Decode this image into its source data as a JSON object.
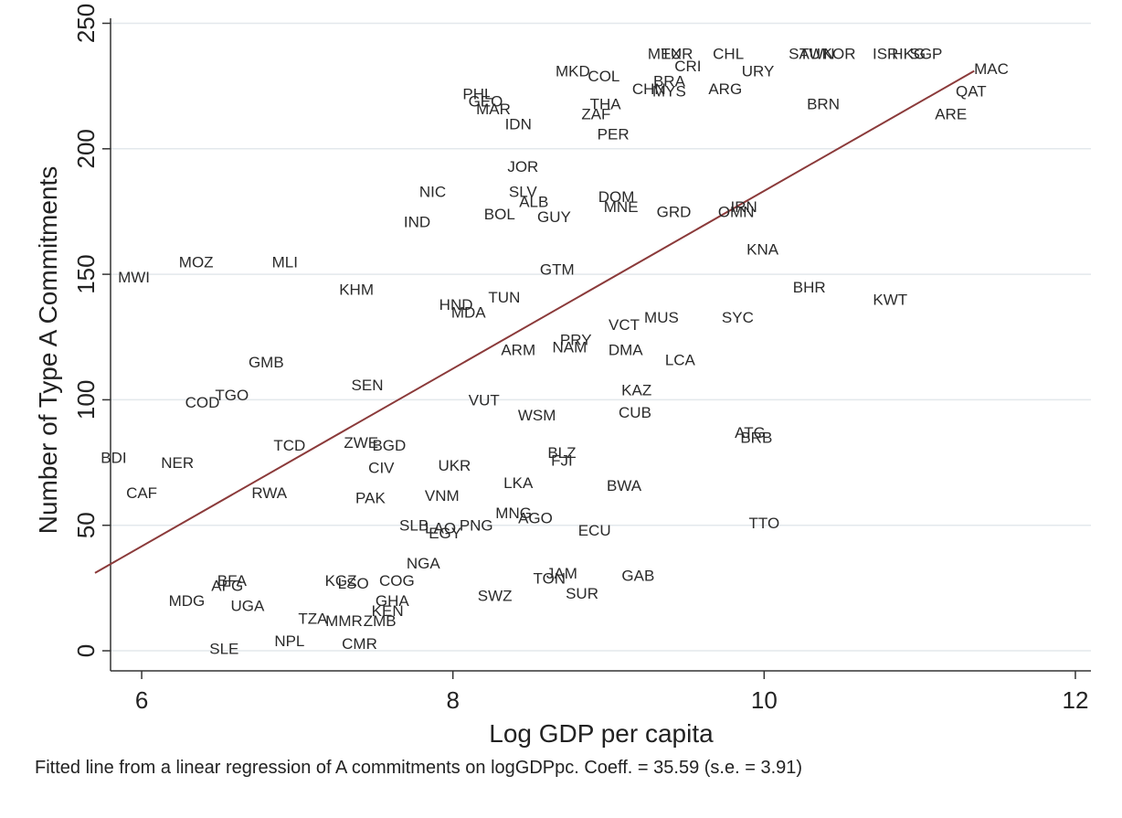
{
  "chart_data": {
    "type": "scatter",
    "xlabel": "Log GDP per capita",
    "ylabel": "Number of Type A Commitments",
    "xlim": [
      5.8,
      12.1
    ],
    "ylim": [
      -8,
      252
    ],
    "xticks": [
      6,
      8,
      10,
      12
    ],
    "yticks": [
      0,
      50,
      100,
      150,
      200,
      250
    ],
    "grid": true,
    "fit_line": {
      "x": [
        5.7,
        11.35
      ],
      "y": [
        31,
        231
      ],
      "color": "#8b3a3a"
    },
    "points": [
      {
        "label": "MWI",
        "x": 5.95,
        "y": 149
      },
      {
        "label": "MOZ",
        "x": 6.35,
        "y": 155
      },
      {
        "label": "MLI",
        "x": 6.92,
        "y": 155
      },
      {
        "label": "KHM",
        "x": 7.38,
        "y": 144
      },
      {
        "label": "NIC",
        "x": 7.87,
        "y": 183
      },
      {
        "label": "IND",
        "x": 7.77,
        "y": 171
      },
      {
        "label": "PHL",
        "x": 8.16,
        "y": 222
      },
      {
        "label": "GEO",
        "x": 8.21,
        "y": 219
      },
      {
        "label": "MAR",
        "x": 8.26,
        "y": 216
      },
      {
        "label": "IDN",
        "x": 8.42,
        "y": 210
      },
      {
        "label": "MKD",
        "x": 8.77,
        "y": 231
      },
      {
        "label": "COL",
        "x": 8.97,
        "y": 229
      },
      {
        "label": "THA",
        "x": 8.98,
        "y": 218
      },
      {
        "label": "ZAF",
        "x": 8.92,
        "y": 214
      },
      {
        "label": "PER",
        "x": 9.03,
        "y": 206
      },
      {
        "label": "JOR",
        "x": 8.45,
        "y": 193
      },
      {
        "label": "SLV",
        "x": 8.45,
        "y": 183
      },
      {
        "label": "ALB",
        "x": 8.52,
        "y": 179
      },
      {
        "label": "BOL",
        "x": 8.3,
        "y": 174
      },
      {
        "label": "GUY",
        "x": 8.65,
        "y": 173
      },
      {
        "label": "DOM",
        "x": 9.05,
        "y": 181
      },
      {
        "label": "MNE",
        "x": 9.08,
        "y": 177
      },
      {
        "label": "GRD",
        "x": 9.42,
        "y": 175
      },
      {
        "label": "MEX",
        "x": 9.36,
        "y": 238
      },
      {
        "label": "TUR",
        "x": 9.44,
        "y": 238
      },
      {
        "label": "CRI",
        "x": 9.51,
        "y": 233
      },
      {
        "label": "BRA",
        "x": 9.39,
        "y": 227
      },
      {
        "label": "CHN",
        "x": 9.26,
        "y": 224
      },
      {
        "label": "MYS",
        "x": 9.39,
        "y": 223
      },
      {
        "label": "CHL",
        "x": 9.77,
        "y": 238
      },
      {
        "label": "URY",
        "x": 9.96,
        "y": 231
      },
      {
        "label": "ARG",
        "x": 9.75,
        "y": 224
      },
      {
        "label": "SAU",
        "x": 10.26,
        "y": 238
      },
      {
        "label": "TWN",
        "x": 10.34,
        "y": 238
      },
      {
        "label": "KOR",
        "x": 10.48,
        "y": 238
      },
      {
        "label": "ISR",
        "x": 10.78,
        "y": 238
      },
      {
        "label": "HKG",
        "x": 10.93,
        "y": 238
      },
      {
        "label": "SGP",
        "x": 11.04,
        "y": 238
      },
      {
        "label": "MAC",
        "x": 11.46,
        "y": 232
      },
      {
        "label": "QAT",
        "x": 11.33,
        "y": 223
      },
      {
        "label": "ARE",
        "x": 11.2,
        "y": 214
      },
      {
        "label": "BRN",
        "x": 10.38,
        "y": 218
      },
      {
        "label": "IRN",
        "x": 9.87,
        "y": 177
      },
      {
        "label": "OMN",
        "x": 9.82,
        "y": 175
      },
      {
        "label": "KNA",
        "x": 9.99,
        "y": 160
      },
      {
        "label": "BHR",
        "x": 10.29,
        "y": 145
      },
      {
        "label": "KWT",
        "x": 10.81,
        "y": 140
      },
      {
        "label": "SYC",
        "x": 9.83,
        "y": 133
      },
      {
        "label": "GTM",
        "x": 8.67,
        "y": 152
      },
      {
        "label": "TUN",
        "x": 8.33,
        "y": 141
      },
      {
        "label": "HND",
        "x": 8.02,
        "y": 138
      },
      {
        "label": "MDA",
        "x": 8.1,
        "y": 135
      },
      {
        "label": "VCT",
        "x": 9.1,
        "y": 130
      },
      {
        "label": "MUS",
        "x": 9.34,
        "y": 133
      },
      {
        "label": "PRY",
        "x": 8.79,
        "y": 124
      },
      {
        "label": "NAM",
        "x": 8.75,
        "y": 121
      },
      {
        "label": "ARM",
        "x": 8.42,
        "y": 120
      },
      {
        "label": "DMA",
        "x": 9.11,
        "y": 120
      },
      {
        "label": "LCA",
        "x": 9.46,
        "y": 116
      },
      {
        "label": "GMB",
        "x": 6.8,
        "y": 115
      },
      {
        "label": "SEN",
        "x": 7.45,
        "y": 106
      },
      {
        "label": "TGO",
        "x": 6.58,
        "y": 102
      },
      {
        "label": "COD",
        "x": 6.39,
        "y": 99
      },
      {
        "label": "VUT",
        "x": 8.2,
        "y": 100
      },
      {
        "label": "WSM",
        "x": 8.54,
        "y": 94
      },
      {
        "label": "KAZ",
        "x": 9.18,
        "y": 104
      },
      {
        "label": "CUB",
        "x": 9.17,
        "y": 95
      },
      {
        "label": "ATG",
        "x": 9.91,
        "y": 87
      },
      {
        "label": "BRB",
        "x": 9.95,
        "y": 85
      },
      {
        "label": "BLZ",
        "x": 8.7,
        "y": 79
      },
      {
        "label": "FJI",
        "x": 8.7,
        "y": 76
      },
      {
        "label": "BDI",
        "x": 5.82,
        "y": 77
      },
      {
        "label": "NER",
        "x": 6.23,
        "y": 75
      },
      {
        "label": "TCD",
        "x": 6.95,
        "y": 82
      },
      {
        "label": "ZWE",
        "x": 7.41,
        "y": 83
      },
      {
        "label": "BGD",
        "x": 7.59,
        "y": 82
      },
      {
        "label": "CIV",
        "x": 7.54,
        "y": 73
      },
      {
        "label": "UKR",
        "x": 8.01,
        "y": 74
      },
      {
        "label": "LKA",
        "x": 8.42,
        "y": 67
      },
      {
        "label": "BWA",
        "x": 9.1,
        "y": 66
      },
      {
        "label": "CAF",
        "x": 6.0,
        "y": 63
      },
      {
        "label": "RWA",
        "x": 6.82,
        "y": 63
      },
      {
        "label": "PAK",
        "x": 7.47,
        "y": 61
      },
      {
        "label": "VNM",
        "x": 7.93,
        "y": 62
      },
      {
        "label": "MNG",
        "x": 8.39,
        "y": 55
      },
      {
        "label": "AGO",
        "x": 8.53,
        "y": 53
      },
      {
        "label": "TTO",
        "x": 10.0,
        "y": 51
      },
      {
        "label": "SLB",
        "x": 7.75,
        "y": 50
      },
      {
        "label": "LAO",
        "x": 7.92,
        "y": 49
      },
      {
        "label": "PNG",
        "x": 8.15,
        "y": 50
      },
      {
        "label": "EGY",
        "x": 7.95,
        "y": 47
      },
      {
        "label": "ECU",
        "x": 8.91,
        "y": 48
      },
      {
        "label": "NGA",
        "x": 7.81,
        "y": 35
      },
      {
        "label": "KGZ",
        "x": 7.28,
        "y": 28
      },
      {
        "label": "LSO",
        "x": 7.36,
        "y": 27
      },
      {
        "label": "COG",
        "x": 7.64,
        "y": 28
      },
      {
        "label": "GHA",
        "x": 7.61,
        "y": 20
      },
      {
        "label": "KEN",
        "x": 7.58,
        "y": 16
      },
      {
        "label": "MMR",
        "x": 7.3,
        "y": 12
      },
      {
        "label": "ZMB",
        "x": 7.53,
        "y": 12
      },
      {
        "label": "TZA",
        "x": 7.1,
        "y": 13
      },
      {
        "label": "CMR",
        "x": 7.4,
        "y": 3
      },
      {
        "label": "NPL",
        "x": 6.95,
        "y": 4
      },
      {
        "label": "SLE",
        "x": 6.53,
        "y": 1
      },
      {
        "label": "MDG",
        "x": 6.29,
        "y": 20
      },
      {
        "label": "UGA",
        "x": 6.68,
        "y": 18
      },
      {
        "label": "BFA",
        "x": 6.58,
        "y": 28
      },
      {
        "label": "AFG",
        "x": 6.55,
        "y": 26
      },
      {
        "label": "SWZ",
        "x": 8.27,
        "y": 22
      },
      {
        "label": "TON",
        "x": 8.62,
        "y": 29
      },
      {
        "label": "JAM",
        "x": 8.7,
        "y": 31
      },
      {
        "label": "SUR",
        "x": 8.83,
        "y": 23
      },
      {
        "label": "GAB",
        "x": 9.19,
        "y": 30
      }
    ]
  },
  "footnote": "Fitted line from a linear regression of A commitments on logGDPpc. Coeff. = 35.59 (s.e. =  3.91)"
}
